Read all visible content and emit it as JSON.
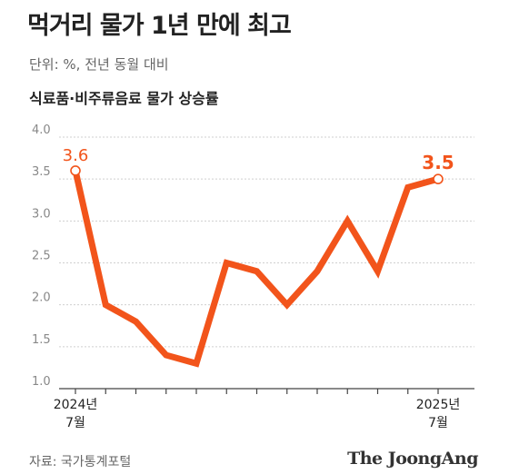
{
  "header": {
    "title": "먹거리 물가 1년 만에 최고",
    "unit": "단위: %, 전년 동월 대비",
    "series_title": "식료품·비주류음료 물가 상승률"
  },
  "footer": {
    "source": "자료: 국가통계포털",
    "brand": "The JoongAng"
  },
  "colors": {
    "line": "#f2541b"
  },
  "chart_data": {
    "type": "line",
    "title": "식료품·비주류음료 물가 상승률",
    "ylim": [
      1.0,
      4.0
    ],
    "yticks": [
      "1.0",
      "1.5",
      "2.0",
      "2.5",
      "3.0",
      "3.5",
      "4.0"
    ],
    "x_label_first": [
      "2024년",
      "7월"
    ],
    "x_label_last": [
      "2025년",
      "7월"
    ],
    "x": [
      "2024-07",
      "2024-08",
      "2024-09",
      "2024-10",
      "2024-11",
      "2024-12",
      "2025-01",
      "2025-02",
      "2025-03",
      "2025-04",
      "2025-05",
      "2025-06",
      "2025-07"
    ],
    "series": [
      {
        "values": [
          3.6,
          2.0,
          1.8,
          1.4,
          1.3,
          2.5,
          2.4,
          2.0,
          2.4,
          3.0,
          2.4,
          3.4,
          3.5
        ]
      }
    ],
    "data_labels": {
      "first": "3.6",
      "last": "3.5"
    },
    "grid": true
  }
}
